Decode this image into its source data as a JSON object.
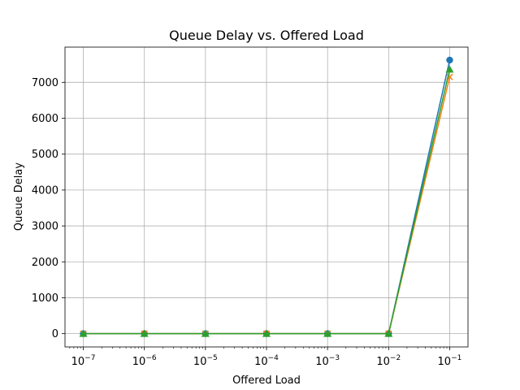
{
  "chart_data": {
    "type": "line",
    "title": "Queue Delay vs. Offered Load",
    "xlabel": "Offered Load",
    "ylabel": "Queue Delay",
    "xscale": "log",
    "x": [
      1e-07,
      1e-06,
      1e-05,
      0.0001,
      0.001,
      0.01,
      0.1
    ],
    "xticks": [
      {
        "base": "10",
        "exp": "−7"
      },
      {
        "base": "10",
        "exp": "−6"
      },
      {
        "base": "10",
        "exp": "−5"
      },
      {
        "base": "10",
        "exp": "−4"
      },
      {
        "base": "10",
        "exp": "−3"
      },
      {
        "base": "10",
        "exp": "−2"
      },
      {
        "base": "10",
        "exp": "−1"
      }
    ],
    "yticks": [
      "0",
      "1000",
      "2000",
      "3000",
      "4000",
      "5000",
      "6000",
      "7000"
    ],
    "ylim": [
      -370,
      7980
    ],
    "grid": true,
    "legend": "none",
    "series": [
      {
        "color": "#1f77b4",
        "marker": "circle",
        "values": [
          0,
          0,
          0,
          0,
          0,
          0,
          7620
        ]
      },
      {
        "color": "#ff7f0e",
        "marker": "x",
        "values": [
          0,
          0,
          0,
          0,
          0,
          0,
          7150
        ]
      },
      {
        "color": "#2ca02c",
        "marker": "triangle",
        "values": [
          0,
          0,
          0,
          0,
          0,
          0,
          7360
        ]
      }
    ]
  }
}
